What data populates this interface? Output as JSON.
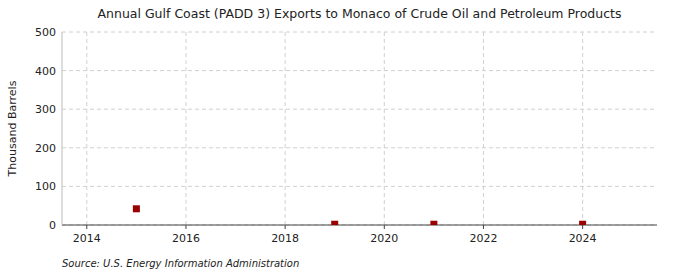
{
  "chart_data": {
    "type": "scatter",
    "title": "Annual Gulf Coast (PADD 3) Exports to Monaco of Crude Oil and Petroleum Products",
    "y_label": "Thousand Barrels",
    "annotations": [
      "Source: U.S. Energy Information Administration"
    ],
    "x": [
      2015,
      2019,
      2021,
      2024
    ],
    "values": [
      42,
      2,
      2,
      2
    ],
    "color": "#990000",
    "marker": "square",
    "xlim": [
      2013.5,
      2025.5
    ],
    "ylim": [
      0,
      500
    ],
    "xticks": [
      2014,
      2016,
      2018,
      2020,
      2022,
      2024
    ],
    "yticks": [
      0,
      100,
      200,
      300,
      400,
      500
    ],
    "grid": true
  }
}
